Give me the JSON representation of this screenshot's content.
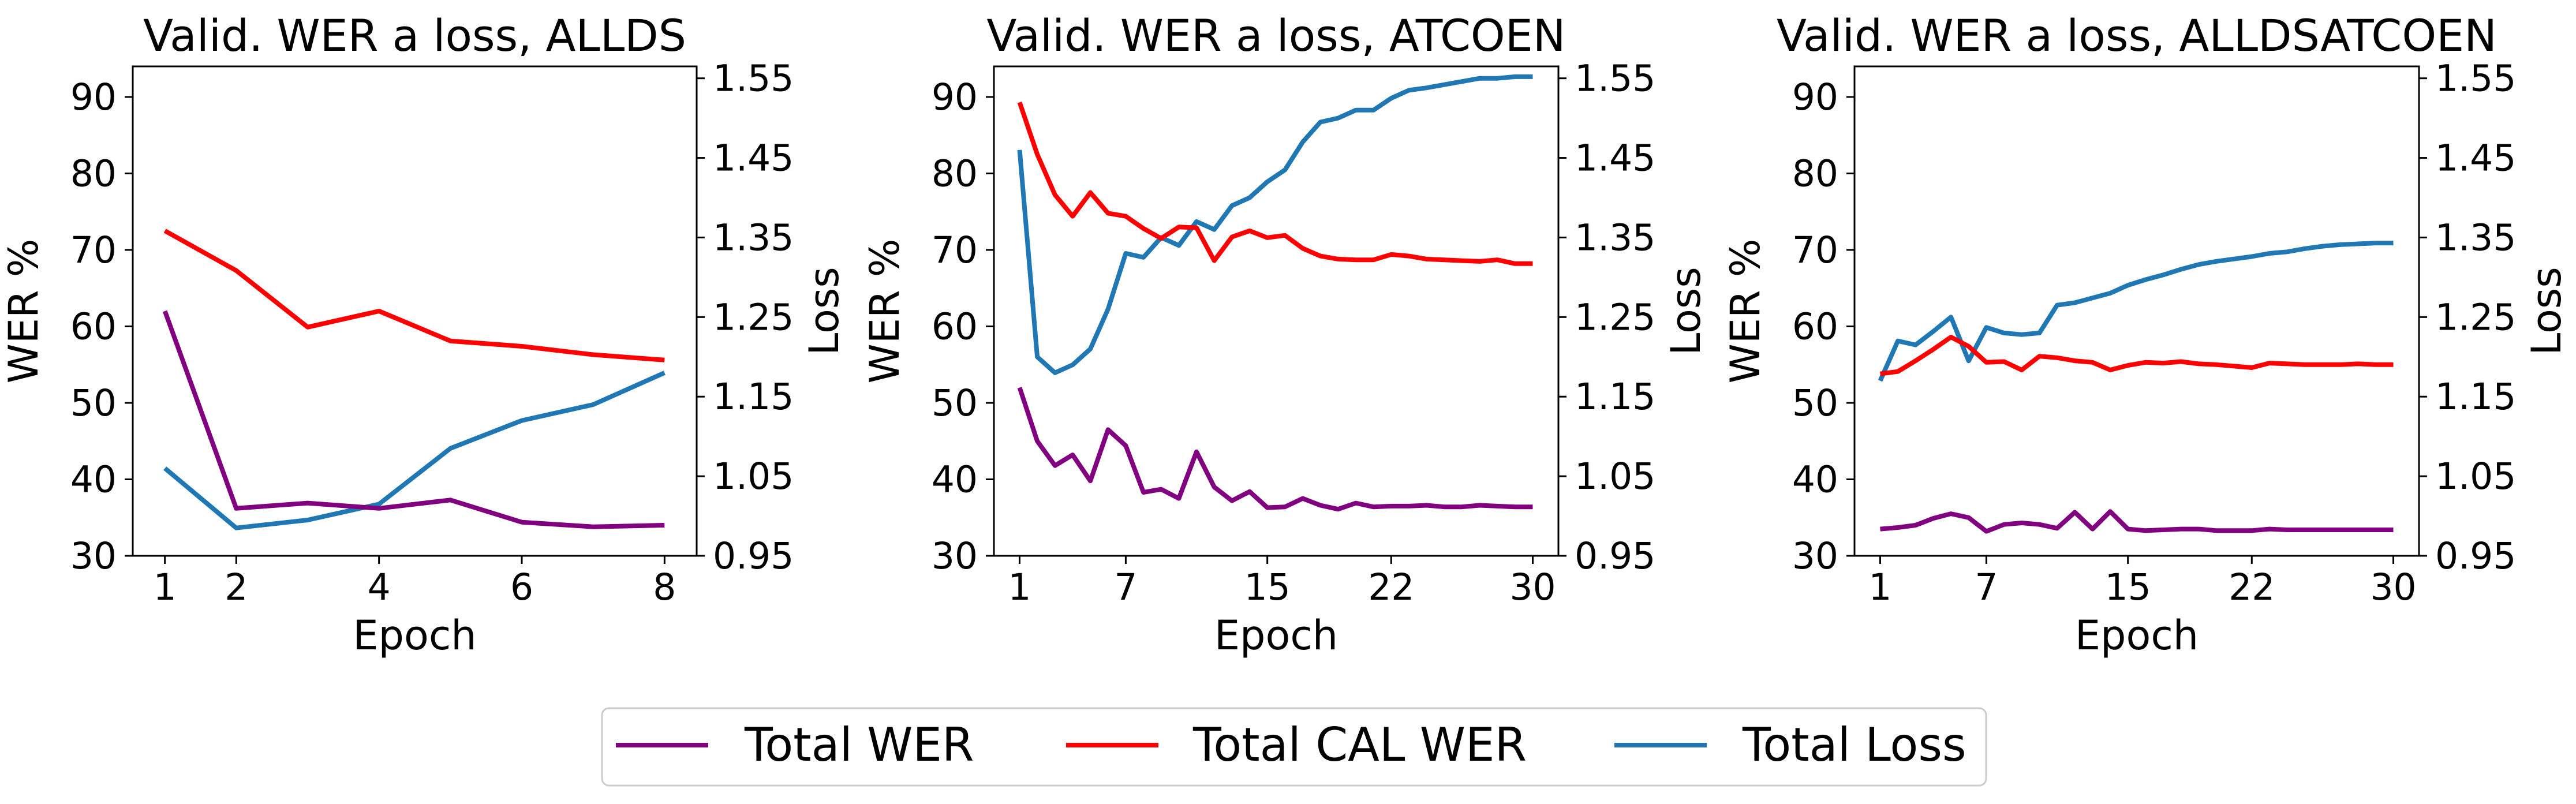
{
  "colors": {
    "total_wer": "#800080",
    "total_cal_wer": "#ff0000",
    "total_loss": "#1f77b4"
  },
  "legend": {
    "items": [
      {
        "label": "Total WER",
        "color": "#800080"
      },
      {
        "label": "Total CAL WER",
        "color": "#ff0000"
      },
      {
        "label": "Total Loss",
        "color": "#1f77b4"
      }
    ]
  },
  "chart_data": [
    {
      "type": "line",
      "title": "Valid. WER a loss, ALLDS",
      "xlabel": "Epoch",
      "ylabel": "WER %",
      "ylabel_right": "Loss",
      "xticks": [
        1,
        2,
        4,
        6,
        8
      ],
      "yticks": [
        30,
        40,
        50,
        60,
        70,
        80,
        90
      ],
      "yticks_right": [
        "0.95",
        "1.05",
        "1.15",
        "1.25",
        "1.35",
        "1.45",
        "1.55"
      ],
      "xlim": [
        0.55,
        8.45
      ],
      "ylim": [
        30,
        94
      ],
      "ylim_right": [
        0.95,
        1.565
      ],
      "x": [
        1,
        2,
        3,
        4,
        5,
        6,
        7,
        8
      ],
      "series": [
        {
          "name": "Total WER",
          "axis": "left",
          "values": [
            62,
            36.2,
            36.9,
            36.2,
            37.3,
            34.4,
            33.8,
            34.0
          ]
        },
        {
          "name": "Total CAL WER",
          "axis": "left",
          "values": [
            72.5,
            67.3,
            59.9,
            62.0,
            58.1,
            57.4,
            56.3,
            55.6
          ]
        },
        {
          "name": "Total Loss",
          "axis": "right",
          "values": [
            1.06,
            0.985,
            0.995,
            1.015,
            1.085,
            1.12,
            1.14,
            1.18
          ]
        }
      ]
    },
    {
      "type": "line",
      "title": "Valid. WER a loss, ATCOEN",
      "xlabel": "Epoch",
      "ylabel": "WER %",
      "ylabel_right": "Loss",
      "xticks": [
        1,
        7,
        15,
        22,
        30
      ],
      "yticks": [
        30,
        40,
        50,
        60,
        70,
        80,
        90
      ],
      "yticks_right": [
        "0.95",
        "1.05",
        "1.15",
        "1.25",
        "1.35",
        "1.45",
        "1.55"
      ],
      "xlim": [
        -0.45,
        31.45
      ],
      "ylim": [
        30,
        94
      ],
      "ylim_right": [
        0.95,
        1.565
      ],
      "x": [
        1,
        2,
        3,
        4,
        5,
        6,
        7,
        8,
        9,
        10,
        11,
        12,
        13,
        14,
        15,
        16,
        17,
        18,
        19,
        20,
        21,
        22,
        23,
        24,
        25,
        26,
        27,
        28,
        29,
        30
      ],
      "series": [
        {
          "name": "Total WER",
          "axis": "left",
          "values": [
            52,
            45,
            41.8,
            43.2,
            39.8,
            46.5,
            44.4,
            38.3,
            38.7,
            37.5,
            43.6,
            39.0,
            37.2,
            38.4,
            36.3,
            36.4,
            37.5,
            36.6,
            36.1,
            36.9,
            36.4,
            36.5,
            36.5,
            36.6,
            36.4,
            36.4,
            36.6,
            36.5,
            36.4,
            36.4
          ]
        },
        {
          "name": "Total CAL WER",
          "axis": "left",
          "values": [
            89.3,
            82.5,
            77.2,
            74.4,
            77.5,
            74.8,
            74.4,
            72.8,
            71.5,
            73.0,
            72.9,
            68.6,
            71.7,
            72.5,
            71.6,
            71.9,
            70.2,
            69.2,
            68.8,
            68.7,
            68.7,
            69.4,
            69.2,
            68.8,
            68.7,
            68.6,
            68.5,
            68.7,
            68.2,
            68.2
          ]
        },
        {
          "name": "Total Loss",
          "axis": "right",
          "values": [
            1.46,
            1.2,
            1.18,
            1.19,
            1.21,
            1.26,
            1.33,
            1.325,
            1.35,
            1.34,
            1.37,
            1.36,
            1.39,
            1.4,
            1.42,
            1.435,
            1.47,
            1.495,
            1.5,
            1.51,
            1.51,
            1.525,
            1.535,
            1.538,
            1.542,
            1.546,
            1.55,
            1.55,
            1.552,
            1.552
          ]
        }
      ]
    },
    {
      "type": "line",
      "title": "Valid. WER a loss, ALLDSATCOEN",
      "xlabel": "Epoch",
      "ylabel": "WER %",
      "ylabel_right": "Loss",
      "xticks": [
        1,
        7,
        15,
        22,
        30
      ],
      "yticks": [
        30,
        40,
        50,
        60,
        70,
        80,
        90
      ],
      "yticks_right": [
        "0.95",
        "1.05",
        "1.15",
        "1.25",
        "1.35",
        "1.45",
        "1.55"
      ],
      "xlim": [
        -0.45,
        31.45
      ],
      "ylim": [
        30,
        94
      ],
      "ylim_right": [
        0.95,
        1.565
      ],
      "x": [
        1,
        2,
        3,
        4,
        5,
        6,
        7,
        8,
        9,
        10,
        11,
        12,
        13,
        14,
        15,
        16,
        17,
        18,
        19,
        20,
        21,
        22,
        23,
        24,
        25,
        26,
        27,
        28,
        29,
        30
      ],
      "series": [
        {
          "name": "Total WER",
          "axis": "left",
          "values": [
            33.5,
            33.7,
            34.0,
            34.9,
            35.5,
            35.0,
            33.2,
            34.1,
            34.3,
            34.1,
            33.6,
            35.7,
            33.5,
            35.8,
            33.5,
            33.3,
            33.4,
            33.5,
            33.5,
            33.3,
            33.3,
            33.3,
            33.5,
            33.4,
            33.4,
            33.4,
            33.4,
            33.4,
            33.4,
            33.4
          ]
        },
        {
          "name": "Total CAL WER",
          "axis": "left",
          "values": [
            53.8,
            54.1,
            55.5,
            57.0,
            58.6,
            57.4,
            55.3,
            55.4,
            54.3,
            56.1,
            55.9,
            55.5,
            55.3,
            54.3,
            54.9,
            55.3,
            55.2,
            55.4,
            55.1,
            55.0,
            54.8,
            54.6,
            55.2,
            55.1,
            55.0,
            55.0,
            55.0,
            55.1,
            55.0,
            55.0
          ]
        },
        {
          "name": "Total Loss",
          "axis": "right",
          "values": [
            1.17,
            1.22,
            1.215,
            1.232,
            1.25,
            1.195,
            1.237,
            1.23,
            1.228,
            1.23,
            1.265,
            1.268,
            1.274,
            1.28,
            1.29,
            1.297,
            1.303,
            1.31,
            1.316,
            1.32,
            1.323,
            1.326,
            1.33,
            1.332,
            1.336,
            1.339,
            1.341,
            1.342,
            1.343,
            1.343
          ]
        }
      ]
    }
  ]
}
